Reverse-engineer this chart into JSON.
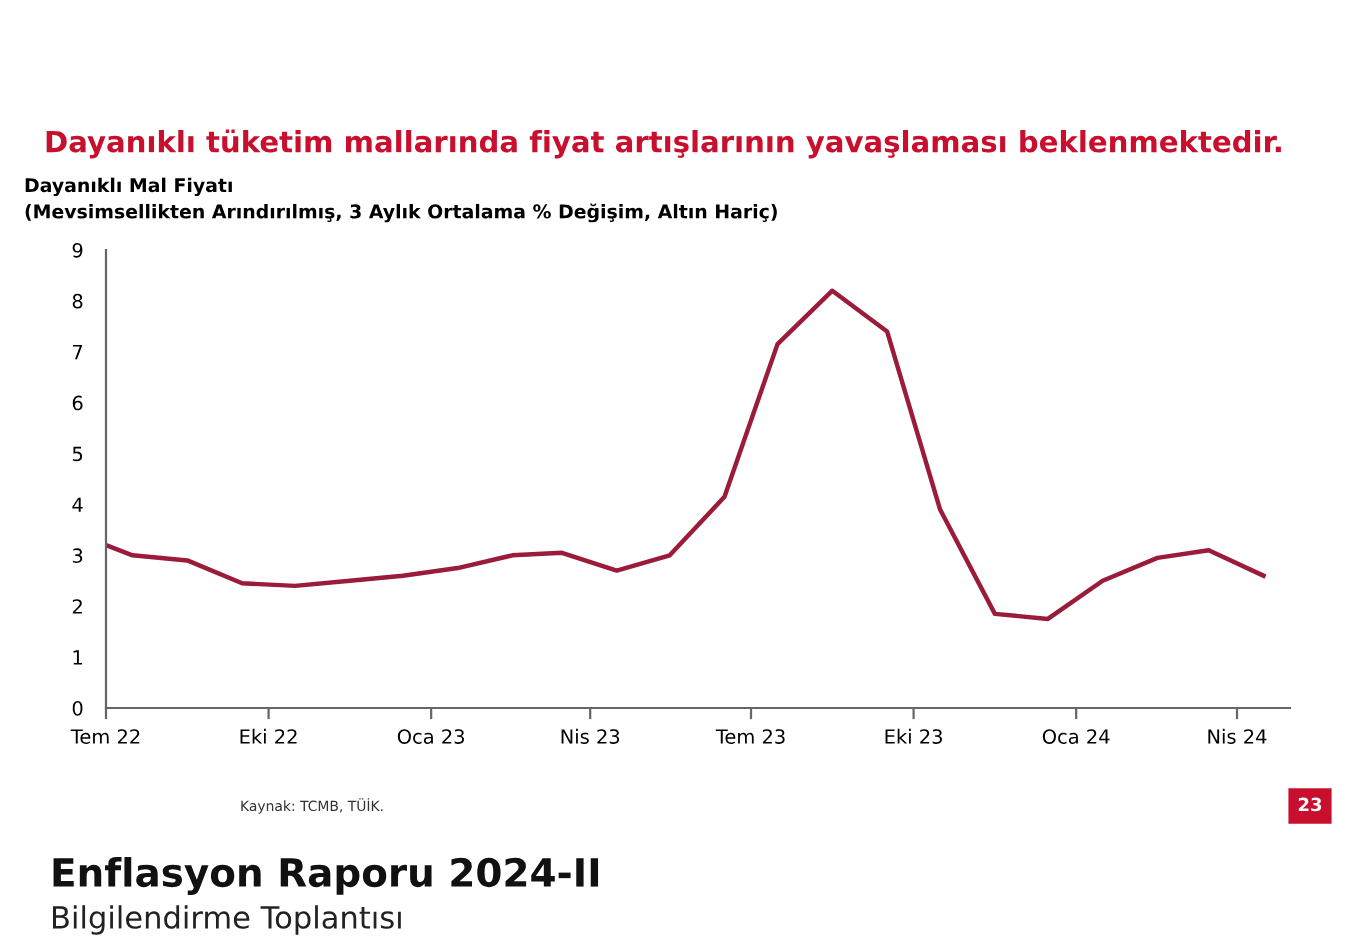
{
  "chart_data": {
    "type": "line",
    "title": "Dayanıklı tüketim mallarında fiyat artışlarının yavaşlaması beklenmektedir.",
    "subtitle": "Dayanıklı Mal Fiyatı\n(Mevsimsellikten Arındırılmış, 3 Aylık Ortalama % Değişim, Altın Hariç)",
    "x": [
      "2022-07-01",
      "2022-07-16",
      "2022-08-16",
      "2022-09-16",
      "2022-10-16",
      "2022-11-16",
      "2022-12-16",
      "2023-01-16",
      "2023-02-16",
      "2023-03-16",
      "2023-04-16",
      "2023-05-16",
      "2023-06-16",
      "2023-07-16",
      "2023-08-16",
      "2023-09-16",
      "2023-10-16",
      "2023-11-16",
      "2023-12-16",
      "2024-01-16",
      "2024-02-16",
      "2024-03-16",
      "2024-04-16"
    ],
    "series": [
      {
        "color": "#9b1b3a",
        "values": [
          3.2,
          3.0,
          2.9,
          2.45,
          2.4,
          2.5,
          2.6,
          2.75,
          3.0,
          3.05,
          2.7,
          3.0,
          4.15,
          7.15,
          8.2,
          7.4,
          3.9,
          1.85,
          1.75,
          2.5,
          2.95,
          3.1,
          2.6
        ]
      }
    ],
    "xlim": [
      "2022-07-01",
      "2024-05-01"
    ],
    "xticks": [
      {
        "value": "2022-07-01",
        "label": "Tem 22"
      },
      {
        "value": "2022-10-01",
        "label": "Eki 22"
      },
      {
        "value": "2023-01-01",
        "label": "Oca 23"
      },
      {
        "value": "2023-04-01",
        "label": "Nis 23"
      },
      {
        "value": "2023-07-01",
        "label": "Tem 23"
      },
      {
        "value": "2023-10-01",
        "label": "Eki 23"
      },
      {
        "value": "2024-01-01",
        "label": "Oca 24"
      },
      {
        "value": "2024-04-01",
        "label": "Nis 24"
      }
    ],
    "ylim": [
      0,
      9
    ],
    "yticks": [
      0,
      1,
      2,
      3,
      4,
      5,
      6,
      7,
      8,
      9
    ],
    "grid": false,
    "legend": false,
    "marker": "none",
    "line_style": "solid",
    "annotations": [
      "Kaynak: TCMB, TÜİK.",
      "23",
      "Enflasyon Raporu 2024-II",
      "Bilgilendirme Toplantısı"
    ]
  }
}
